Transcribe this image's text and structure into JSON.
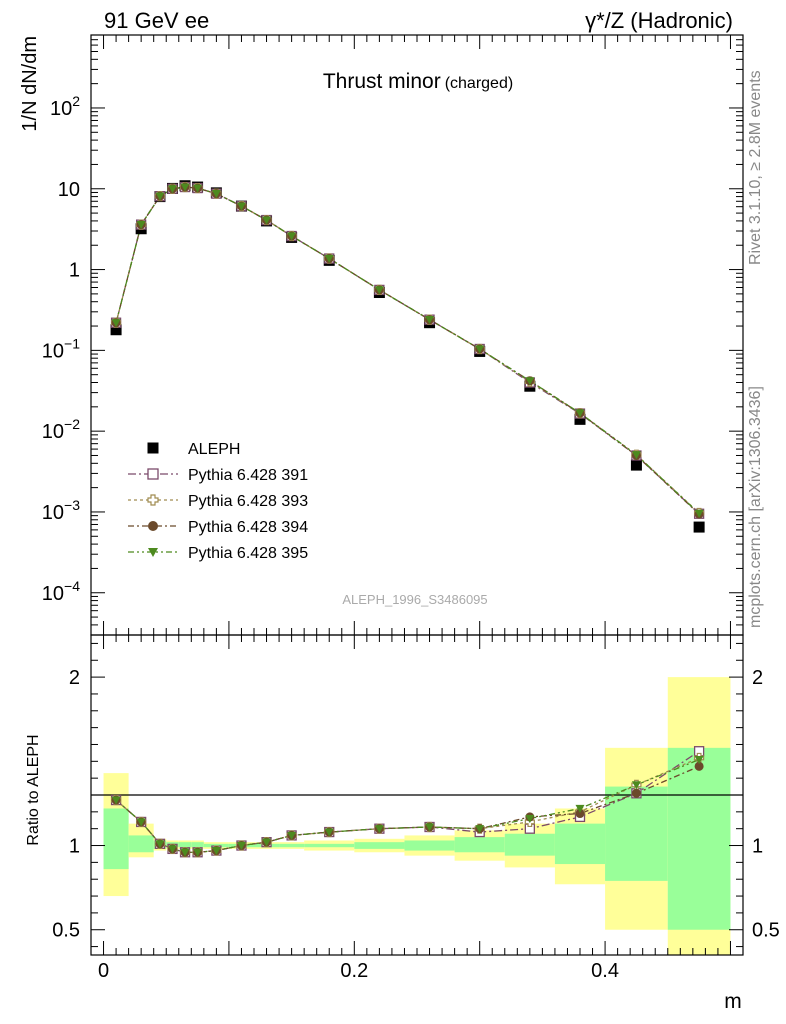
{
  "header": {
    "left": "91 GeV ee",
    "right": "γ*/Z (Hadronic)"
  },
  "side_text": {
    "rivet": "Rivet 3.1.10, ≥ 2.8M events",
    "mcplots": "mcplots.cern.ch [arXiv:1306.3436]"
  },
  "chart_data": [
    {
      "type": "scatter",
      "panel": "main",
      "title": "Thrust minor",
      "title_suffix": "(charged)",
      "xlabel": "m",
      "ylabel": "1/N dN/dm",
      "yscale": "log",
      "ylim": [
        3e-05,
        800
      ],
      "xlim": [
        -0.01,
        0.51
      ],
      "yticks": [
        {
          "v": 0.0001,
          "base": "10",
          "exp": "−4"
        },
        {
          "v": 0.001,
          "base": "10",
          "exp": "−3"
        },
        {
          "v": 0.01,
          "base": "10",
          "exp": "−2"
        },
        {
          "v": 0.1,
          "base": "10",
          "exp": "−1"
        },
        {
          "v": 1,
          "base": "1",
          "exp": ""
        },
        {
          "v": 10,
          "base": "10",
          "exp": ""
        },
        {
          "v": 100,
          "base": "10",
          "exp": "2"
        }
      ],
      "watermark": "ALEPH_1996_S3486095",
      "legend_position": "bottom-left",
      "x": [
        0.01,
        0.03,
        0.045,
        0.055,
        0.065,
        0.075,
        0.09,
        0.11,
        0.13,
        0.15,
        0.18,
        0.22,
        0.26,
        0.3,
        0.34,
        0.38,
        0.425,
        0.475
      ],
      "series": [
        {
          "name": "ALEPH",
          "marker": "square",
          "color": "#000000",
          "values": [
            0.18,
            3.2,
            8.0,
            10.1,
            10.9,
            10.5,
            8.9,
            6.1,
            4.0,
            2.5,
            1.3,
            0.52,
            0.22,
            0.097,
            0.036,
            0.014,
            0.0038,
            0.00065
          ]
        },
        {
          "name": "Pythia 6.428 391",
          "marker": "open-square",
          "color": "#7b4a6b",
          "values": [
            0.22,
            3.6,
            8.1,
            10.0,
            10.5,
            10.2,
            8.7,
            6.1,
            4.1,
            2.6,
            1.37,
            0.56,
            0.24,
            0.104,
            0.04,
            0.0165,
            0.005,
            0.00095
          ]
        },
        {
          "name": "Pythia 6.428 393",
          "marker": "open-cross",
          "color": "#a08c50",
          "values": [
            0.22,
            3.6,
            8.1,
            10.0,
            10.5,
            10.2,
            8.7,
            6.1,
            4.1,
            2.6,
            1.37,
            0.56,
            0.24,
            0.104,
            0.041,
            0.0167,
            0.0051,
            0.00097
          ]
        },
        {
          "name": "Pythia 6.428 394",
          "marker": "circle",
          "color": "#6b4a2b",
          "values": [
            0.22,
            3.6,
            8.1,
            10.0,
            10.5,
            10.2,
            8.7,
            6.1,
            4.1,
            2.6,
            1.37,
            0.56,
            0.24,
            0.104,
            0.042,
            0.0167,
            0.005,
            0.00094
          ]
        },
        {
          "name": "Pythia 6.428 395",
          "marker": "triangle-down",
          "color": "#4d8a1f",
          "values": [
            0.22,
            3.6,
            8.1,
            10.0,
            10.5,
            10.2,
            8.7,
            6.1,
            4.1,
            2.6,
            1.37,
            0.56,
            0.24,
            0.104,
            0.042,
            0.0168,
            0.0051,
            0.00096
          ]
        }
      ]
    },
    {
      "type": "line",
      "panel": "ratio",
      "ylabel": "Ratio to ALEPH",
      "xlabel": "m",
      "xlim": [
        -0.01,
        0.51
      ],
      "ylim": [
        0.35,
        2.25
      ],
      "xticks": [
        {
          "v": 0,
          "label": "0"
        },
        {
          "v": 0.2,
          "label": "0.2"
        },
        {
          "v": 0.4,
          "label": "0.4"
        }
      ],
      "yticks": [
        {
          "v": 0.5,
          "label": "0.5"
        },
        {
          "v": 1,
          "label": "1"
        },
        {
          "v": 2,
          "label": "2"
        }
      ],
      "bins": [
        [
          0,
          0.02
        ],
        [
          0.02,
          0.04
        ],
        [
          0.04,
          0.05
        ],
        [
          0.05,
          0.06
        ],
        [
          0.06,
          0.07
        ],
        [
          0.07,
          0.08
        ],
        [
          0.08,
          0.1
        ],
        [
          0.1,
          0.12
        ],
        [
          0.12,
          0.14
        ],
        [
          0.14,
          0.16
        ],
        [
          0.16,
          0.2
        ],
        [
          0.2,
          0.24
        ],
        [
          0.24,
          0.28
        ],
        [
          0.28,
          0.32
        ],
        [
          0.32,
          0.36
        ],
        [
          0.36,
          0.4
        ],
        [
          0.4,
          0.45
        ],
        [
          0.45,
          0.5
        ]
      ],
      "band_stat": [
        [
          0.86,
          1.22
        ],
        [
          0.96,
          1.06
        ],
        [
          0.98,
          1.03
        ],
        [
          0.99,
          1.02
        ],
        [
          0.99,
          1.02
        ],
        [
          0.99,
          1.02
        ],
        [
          0.99,
          1.01
        ],
        [
          0.99,
          1.01
        ],
        [
          0.99,
          1.01
        ],
        [
          0.99,
          1.01
        ],
        [
          0.99,
          1.01
        ],
        [
          0.98,
          1.02
        ],
        [
          0.97,
          1.03
        ],
        [
          0.96,
          1.05
        ],
        [
          0.94,
          1.07
        ],
        [
          0.89,
          1.13
        ],
        [
          0.79,
          1.35
        ],
        [
          0.5,
          1.58
        ]
      ],
      "band_total": [
        [
          0.7,
          1.43
        ],
        [
          0.93,
          1.13
        ],
        [
          0.97,
          1.04
        ],
        [
          0.98,
          1.03
        ],
        [
          0.98,
          1.03
        ],
        [
          0.98,
          1.03
        ],
        [
          0.98,
          1.02
        ],
        [
          0.98,
          1.02
        ],
        [
          0.98,
          1.02
        ],
        [
          0.98,
          1.02
        ],
        [
          0.97,
          1.03
        ],
        [
          0.96,
          1.04
        ],
        [
          0.94,
          1.06
        ],
        [
          0.91,
          1.09
        ],
        [
          0.87,
          1.13
        ],
        [
          0.77,
          1.22
        ],
        [
          0.5,
          1.58
        ],
        [
          0.33,
          2.0
        ]
      ],
      "series": [
        {
          "name": "Pythia 6.428 391",
          "values": [
            1.27,
            1.14,
            1.01,
            0.98,
            0.96,
            0.96,
            0.97,
            1.0,
            1.02,
            1.06,
            1.08,
            1.1,
            1.11,
            1.08,
            1.1,
            1.17,
            1.31,
            1.56
          ]
        },
        {
          "name": "Pythia 6.428 393",
          "values": [
            1.27,
            1.14,
            1.01,
            0.98,
            0.96,
            0.96,
            0.97,
            1.0,
            1.02,
            1.06,
            1.08,
            1.1,
            1.11,
            1.1,
            1.14,
            1.2,
            1.36,
            1.52
          ]
        },
        {
          "name": "Pythia 6.428 394",
          "values": [
            1.27,
            1.14,
            1.01,
            0.98,
            0.96,
            0.96,
            0.97,
            1.0,
            1.02,
            1.06,
            1.08,
            1.1,
            1.11,
            1.1,
            1.17,
            1.19,
            1.31,
            1.47
          ]
        },
        {
          "name": "Pythia 6.428 395",
          "values": [
            1.27,
            1.14,
            1.01,
            0.98,
            0.96,
            0.96,
            0.97,
            1.0,
            1.02,
            1.06,
            1.08,
            1.1,
            1.11,
            1.1,
            1.16,
            1.22,
            1.36,
            1.51
          ]
        }
      ]
    }
  ],
  "colors": {
    "band_total": "#ffff99",
    "band_stat": "#99ff99",
    "data": "#000000"
  }
}
